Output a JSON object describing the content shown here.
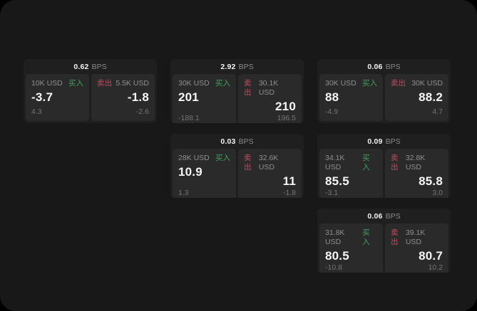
{
  "labels": {
    "bps_suffix": "BPS",
    "buy": "买入",
    "sell": "卖出"
  },
  "colors": {
    "panel_bg": "#181818",
    "card_bg": "#1f1f1f",
    "tile_bg": "#2a2a2a",
    "buy": "#3da35c",
    "sell": "#c54a5e"
  },
  "cards": [
    {
      "grid": {
        "row": 1,
        "col": 1
      },
      "bps": "0.62",
      "buy": {
        "size": "10K USD",
        "value": "-3.7",
        "sub": "4.3"
      },
      "sell": {
        "size": "5.5K USD",
        "value": "-1.8",
        "sub": "-2.6"
      }
    },
    {
      "grid": {
        "row": 1,
        "col": 2
      },
      "bps": "2.92",
      "buy": {
        "size": "30K USD",
        "value": "201",
        "sub": "-188.1"
      },
      "sell": {
        "size": "30.1K USD",
        "value": "210",
        "sub": "196.5"
      }
    },
    {
      "grid": {
        "row": 1,
        "col": 3
      },
      "bps": "0.06",
      "buy": {
        "size": "30K USD",
        "value": "88",
        "sub": "-4.9"
      },
      "sell": {
        "size": "30K USD",
        "value": "88.2",
        "sub": "4.7"
      }
    },
    {
      "grid": {
        "row": 2,
        "col": 2
      },
      "bps": "0.03",
      "buy": {
        "size": "28K USD",
        "value": "10.9",
        "sub": "1.3"
      },
      "sell": {
        "size": "32.6K USD",
        "value": "11",
        "sub": "-1.8"
      }
    },
    {
      "grid": {
        "row": 2,
        "col": 3
      },
      "bps": "0.09",
      "buy": {
        "size": "34.1K USD",
        "value": "85.5",
        "sub": "-3.1"
      },
      "sell": {
        "size": "32.8K USD",
        "value": "85.8",
        "sub": "3.0"
      }
    },
    {
      "grid": {
        "row": 3,
        "col": 3
      },
      "bps": "0.06",
      "buy": {
        "size": "31.8K USD",
        "value": "80.5",
        "sub": "-10.8"
      },
      "sell": {
        "size": "39.1K USD",
        "value": "80.7",
        "sub": "10.2"
      }
    }
  ]
}
